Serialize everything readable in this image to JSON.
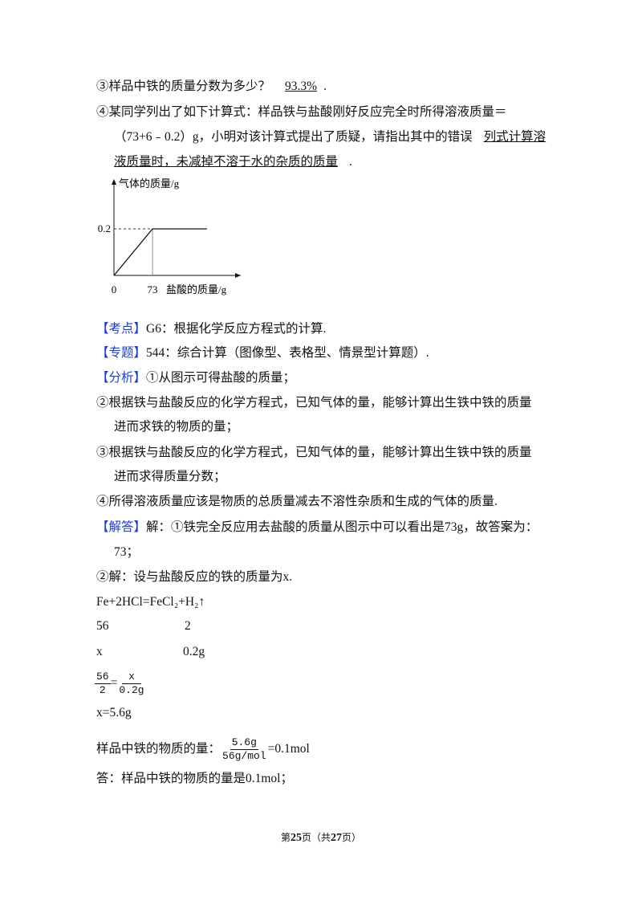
{
  "questions": {
    "q3": {
      "text": "③样品中铁的质量分数为多少？",
      "answer": "93.3%",
      "end": "."
    },
    "q4": {
      "lines": [
        "④某同学列出了如下计算式：样品铁与盐酸刚好反应完全时所得溶液质量＝",
        "（73+6﹣0.2）g，小明对该计算式提出了质疑，请指出其中的错误"
      ],
      "answer_lines": [
        "列式计算溶",
        "液质量时，未减掉不溶于水的杂质的质量"
      ],
      "end": "."
    }
  },
  "figure": {
    "y_label": "气体的质量/g",
    "x_label": "盐酸的质量/g",
    "xlim": [
      0,
      240
    ],
    "ylim": [
      0,
      0.4
    ],
    "xticks": [
      0,
      73
    ],
    "yticks": [
      0.2
    ],
    "x": [
      0,
      73,
      176
    ],
    "y": [
      0,
      0.2,
      0.2
    ]
  },
  "analysis": {
    "kaodian": {
      "label": "【考点】",
      "text": "G6：根据化学反应方程式的计算."
    },
    "zhuanti": {
      "label": "【专题】",
      "text": "544：综合计算（图像型、表格型、情景型计算题）."
    },
    "fenxi": {
      "label": "【分析】",
      "lines": [
        "①从图示可得盐酸的质量；",
        "②根据铁与盐酸反应的化学方程式，已知气体的量，能够计算出生铁中铁的质量",
        "进而求铁的物质的量；",
        "③根据铁与盐酸反应的化学方程式，已知气体的量，能够计算出生铁中铁的质量",
        "进而求得质量分数；",
        "④所得溶液质量应该是物质的总质量减去不溶性杂质和生成的气体的质量."
      ]
    },
    "jieda": {
      "label": "【解答】",
      "lines": [
        "解：①铁完全反应用去盐酸的质量从图示中可以看出是73g，故答案为：",
        "73；",
        "②解：设与盐酸反应的铁的质量为x.",
        "Fe+2HCl=FeCl₂+H₂↑"
      ],
      "ratio_row1": [
        "56",
        "2"
      ],
      "ratio_row2": [
        "x",
        "0.2g"
      ],
      "fraction1": {
        "num": "56",
        "den": "2"
      },
      "eq": "=",
      "fraction2": {
        "num": "x",
        "den": "0.2g"
      },
      "result": "x=5.6g",
      "mol_prefix": "样品中铁的物质的量：",
      "fraction3": {
        "num": "5.6g",
        "den": "56g/mol"
      },
      "mol_result": "=0.1mol",
      "answer": "答：样品中铁的物质的量是0.1mol；"
    }
  },
  "footer": {
    "prefix": "第",
    "current": "25",
    "middle": "页（共",
    "total": "27",
    "suffix": "页）"
  }
}
